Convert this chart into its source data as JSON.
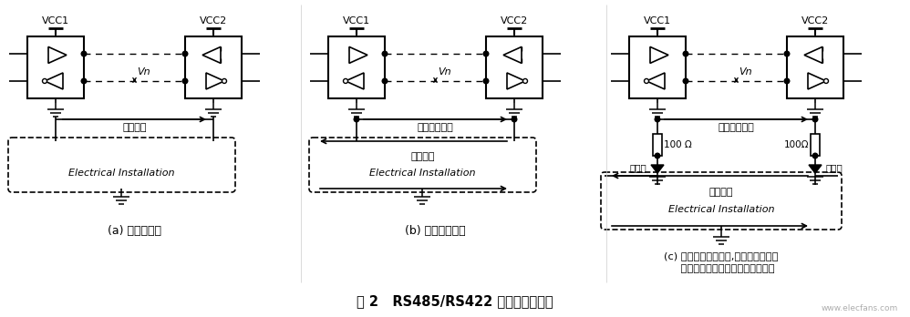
{
  "title": "图 2   RS485/RS422 通信的一般设计",
  "caption_a": "(a) 高地电位差",
  "caption_b": "(b) 高地回路电流",
  "caption_c1": "(c) 虽然减小回路电流,然而大地回路的",
  "caption_c2": "    存在使电路对噪声灵敏度非常敏感",
  "label_gnd_diff": "地电位差",
  "label_high_loop": "高地回路电流",
  "label_low_loop": "低地回路电流",
  "label_ground_loop": "接地回路",
  "label_signal_gnd": "信号地",
  "label_elec": "Electrical Installation",
  "label_vn": "Vn",
  "label_100ohm_l": "100 Ω",
  "label_100ohm_r": "100Ω",
  "watermark": "www.elecfans.com",
  "bg_color": "#ffffff"
}
